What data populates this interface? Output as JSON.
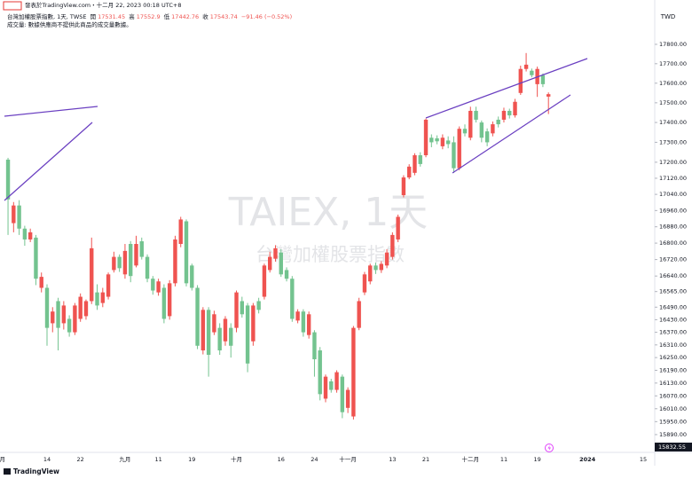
{
  "chart_data": {
    "type": "candlestick",
    "published": "發表於TradingView.com・十二月 22, 2023 00:18 UTC+8",
    "title": "台灣加權股票指數, 1天, TWSE",
    "ohlc_labels": [
      "開",
      "高",
      "低",
      "收"
    ],
    "change_label": "−91.46 (−0.52%)",
    "volume_note": "成交量: 數據供應商不提供此商品的成交量數據。",
    "watermark": "TAIEX, 1天",
    "watermark_subtitle": "台灣加權股票指數",
    "currency": "TWD",
    "brand": "TradingView",
    "up_color": "#ef5350",
    "down_color": "#73c38f",
    "log_scale": true,
    "ylim": [
      15808,
      18031
    ],
    "yticks": [
      {
        "value": 17800,
        "label": "17800.00"
      },
      {
        "value": 17700,
        "label": "17700.00"
      },
      {
        "value": 17600,
        "label": "17600.00"
      },
      {
        "value": 17500,
        "label": "17500.00"
      },
      {
        "value": 17400,
        "label": "17400.00"
      },
      {
        "value": 17300,
        "label": "17300.00"
      },
      {
        "value": 17200,
        "label": "17200.00"
      },
      {
        "value": 17120,
        "label": "17120.00"
      },
      {
        "value": 17040,
        "label": "17040.00"
      },
      {
        "value": 16960,
        "label": "16960.00"
      },
      {
        "value": 16880,
        "label": "16880.00"
      },
      {
        "value": 16800,
        "label": "16800.00"
      },
      {
        "value": 16720,
        "label": "16720.00"
      },
      {
        "value": 16640,
        "label": "16640.00"
      },
      {
        "value": 16565,
        "label": "16565.00"
      },
      {
        "value": 16490,
        "label": "16490.00"
      },
      {
        "value": 16430,
        "label": "16430.00"
      },
      {
        "value": 16370,
        "label": "16370.00"
      },
      {
        "value": 16310,
        "label": "16310.00"
      },
      {
        "value": 16250,
        "label": "16250.00"
      },
      {
        "value": 16190,
        "label": "16190.00"
      },
      {
        "value": 16130,
        "label": "16130.00"
      },
      {
        "value": 16070,
        "label": "16070.00"
      },
      {
        "value": 16010,
        "label": "16010.00"
      },
      {
        "value": 15950,
        "label": "15950.00"
      },
      {
        "value": 15890,
        "label": "15890.00"
      }
    ],
    "crosshair_price": 15832.55,
    "categories": [
      "月",
      null,
      null,
      null,
      null,
      null,
      null,
      null,
      "14",
      null,
      null,
      null,
      null,
      null,
      "22",
      null,
      null,
      null,
      null,
      null,
      null,
      null,
      "九月",
      null,
      null,
      null,
      null,
      null,
      "11",
      null,
      null,
      null,
      null,
      null,
      "19",
      null,
      null,
      null,
      null,
      null,
      null,
      null,
      "十月",
      null,
      null,
      null,
      null,
      null,
      null,
      null,
      "16",
      null,
      null,
      null,
      null,
      null,
      "24",
      null,
      null,
      null,
      null,
      null,
      "十一月",
      null,
      null,
      null,
      null,
      null,
      null,
      null,
      "13",
      null,
      null,
      null,
      null,
      null,
      "21",
      null,
      null,
      null,
      null,
      null,
      null,
      null,
      "十二月",
      null,
      null,
      null,
      null,
      null,
      "11",
      null,
      null,
      null,
      null,
      null,
      "19",
      null,
      null,
      null,
      null,
      null,
      null,
      null,
      null,
      "2024",
      null,
      null,
      null,
      null,
      null,
      null,
      null,
      null,
      null,
      "15",
      null,
      null
    ],
    "open": [
      null,
      17213,
      16898,
      16985,
      16871,
      16818,
      16827,
      16583,
      16583,
      16413,
      16519,
      16413,
      16434,
      16370,
      16434,
      16447,
      16519,
      16561,
      16510,
      16540,
      16669,
      16733,
      16648,
      16796,
      16691,
      16809,
      16733,
      16627,
      16561,
      16583,
      16447,
      16605,
      16796,
      16907,
      16691,
      16583,
      16284,
      16477,
      16370,
      16391,
      16327,
      16391,
      16391,
      16519,
      16498,
      16327,
      16519,
      16540,
      16669,
      16724,
      16754,
      16669,
      16627,
      16426,
      16469,
      16357,
      16370,
      16284,
      16057,
      16138,
      16098,
      16160,
      16014,
      15974,
      16391,
      16561,
      16614,
      16691,
      16669,
      16691,
      16733,
      16818,
      17036,
      17124,
      17147,
      17235,
      17235,
      17323,
      17320,
      17280,
      17309,
      17300,
      17170,
      17368,
      17323,
      17459,
      17400,
      17355,
      17345,
      17414,
      17414,
      17459,
      17436,
      17550,
      17673,
      17664,
      17595,
      17641,
      17531.45,
      null,
      null,
      null,
      null,
      null,
      null,
      null,
      null,
      null,
      null,
      null,
      null,
      null,
      null,
      null,
      null,
      null,
      null,
      null
    ],
    "high": [
      null,
      17222,
      17002,
      17011,
      16885,
      16871,
      16840,
      16657,
      16600,
      16490,
      16535,
      16519,
      16451,
      16510,
      16556,
      16527,
      16827,
      16600,
      16583,
      16657,
      16758,
      16745,
      16796,
      16810,
      16836,
      16827,
      16745,
      16640,
      16627,
      16600,
      16620,
      16836,
      16929,
      16916,
      16700,
      16596,
      16490,
      16490,
      16473,
      16413,
      16447,
      16413,
      16570,
      16540,
      16510,
      16510,
      16535,
      16700,
      16758,
      16790,
      16770,
      16682,
      16640,
      16480,
      16480,
      16469,
      16380,
      16300,
      16170,
      16150,
      16190,
      16170,
      16110,
      16400,
      16535,
      16660,
      16700,
      16705,
      16712,
      16770,
      16853,
      16940,
      17135,
      17190,
      17245,
      17250,
      17420,
      17340,
      17335,
      17340,
      17330,
      17330,
      17380,
      17390,
      17480,
      17480,
      17410,
      17370,
      17405,
      17430,
      17475,
      17470,
      17520,
      17690,
      17755,
      17675,
      17685,
      17650,
      17552.9,
      null,
      null,
      null,
      null,
      null,
      null,
      null,
      null,
      null,
      null,
      null,
      null,
      null,
      null,
      null,
      null,
      null,
      null,
      null
    ],
    "low": [
      null,
      16840,
      16853,
      16840,
      16787,
      16805,
      16596,
      16561,
      16306,
      16370,
      16284,
      16383,
      16349,
      16357,
      16420,
      16430,
      16505,
      16477,
      16490,
      16527,
      16657,
      16660,
      16627,
      16610,
      16682,
      16720,
      16610,
      16550,
      16545,
      16413,
      16430,
      16590,
      16780,
      16590,
      16570,
      16290,
      16265,
      16160,
      16357,
      16263,
      16306,
      16250,
      16370,
      16440,
      16181,
      16306,
      16460,
      16527,
      16657,
      16710,
      16636,
      16614,
      16420,
      16413,
      16349,
      16340,
      16160,
      16049,
      16040,
      16085,
      16085,
      15966,
      15990,
      15960,
      16380,
      16548,
      16600,
      16650,
      16655,
      16678,
      16720,
      16805,
      17025,
      17115,
      17135,
      17178,
      17225,
      17275,
      17290,
      17265,
      17270,
      17147,
      17160,
      17330,
      17310,
      17400,
      17300,
      17280,
      17330,
      17375,
      17400,
      17420,
      17425,
      17540,
      17660,
      17630,
      17530,
      17580,
      17442.76,
      null,
      null,
      null,
      null,
      null,
      null,
      null,
      null,
      null,
      null,
      null,
      null,
      null,
      null,
      null,
      null,
      null,
      null,
      null
    ],
    "close": [
      null,
      17015,
      16985,
      16871,
      16818,
      16853,
      16627,
      16636,
      16391,
      16469,
      16391,
      16498,
      16370,
      16498,
      16540,
      16519,
      16775,
      16498,
      16561,
      16648,
      16733,
      16678,
      16762,
      16640,
      16796,
      16733,
      16627,
      16570,
      16614,
      16434,
      16605,
      16818,
      16916,
      16605,
      16583,
      16306,
      16477,
      16263,
      16456,
      16284,
      16434,
      16306,
      16561,
      16456,
      16222,
      16498,
      16477,
      16691,
      16733,
      16775,
      16648,
      16627,
      16434,
      16469,
      16370,
      16456,
      16242,
      16078,
      16160,
      16098,
      16181,
      15994,
      16098,
      16391,
      16519,
      16648,
      16691,
      16669,
      16699,
      16754,
      16840,
      16929,
      17124,
      17178,
      17235,
      17191,
      17414,
      17300,
      17305,
      17323,
      17291,
      17170,
      17368,
      17345,
      17459,
      17414,
      17323,
      17300,
      17391,
      17391,
      17459,
      17436,
      17505,
      17673,
      17695,
      17641,
      17673,
      17595,
      17543.74,
      null,
      null,
      null,
      null,
      null,
      null,
      null,
      null,
      null,
      null,
      null,
      null,
      null,
      null,
      null,
      null,
      null,
      null,
      null
    ]
  }
}
